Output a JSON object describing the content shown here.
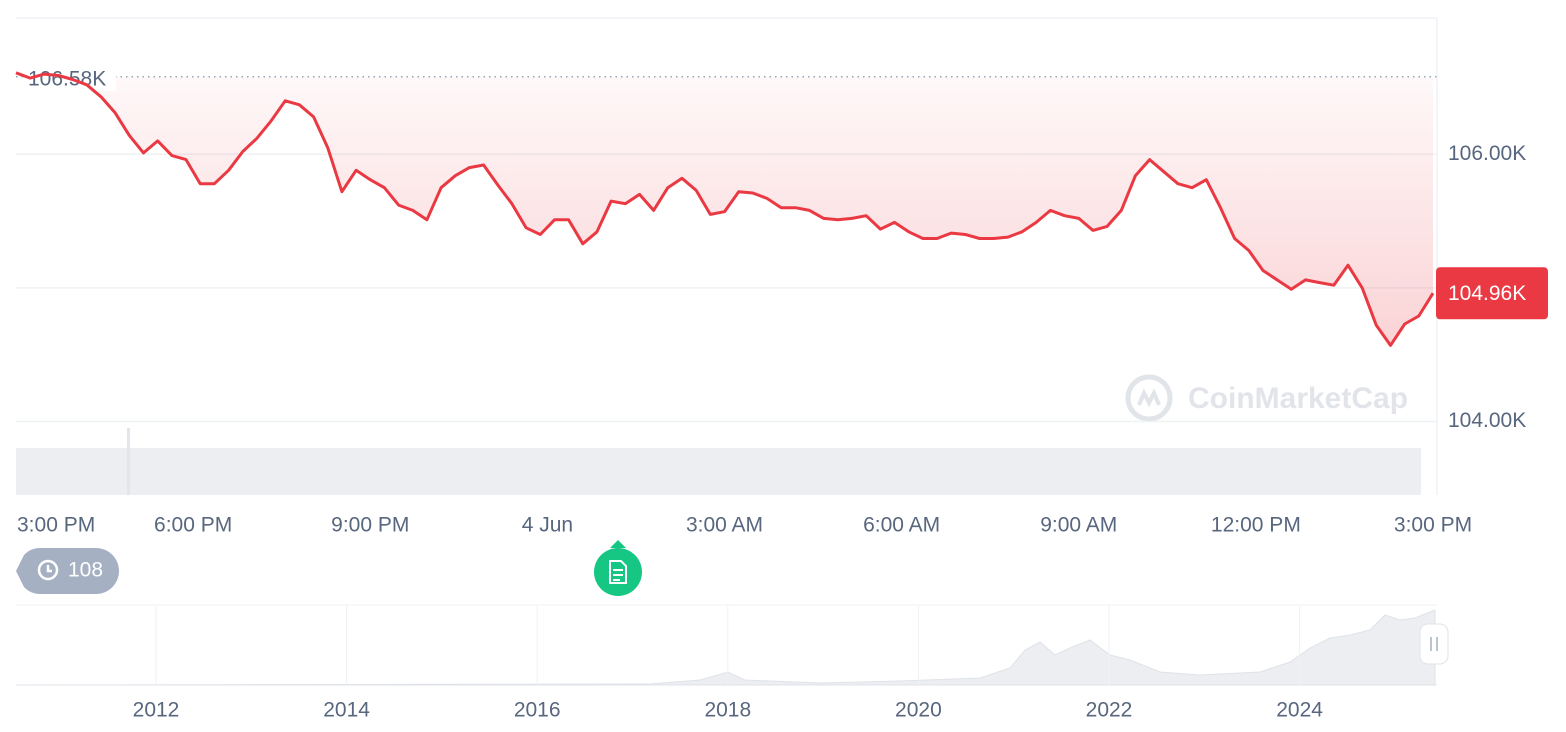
{
  "chart_data": {
    "type": "line",
    "color": "#ea3943",
    "values": [
      106610,
      106570,
      106600,
      106590,
      106560,
      106520,
      106430,
      106310,
      106140,
      106010,
      106100,
      105990,
      105960,
      105780,
      105780,
      105880,
      106020,
      106120,
      106250,
      106400,
      106370,
      106280,
      106050,
      105720,
      105880,
      105810,
      105750,
      105620,
      105580,
      105510,
      105750,
      105840,
      105900,
      105920,
      105770,
      105630,
      105450,
      105400,
      105510,
      105510,
      105330,
      105420,
      105650,
      105630,
      105700,
      105580,
      105750,
      105820,
      105730,
      105550,
      105570,
      105720,
      105710,
      105670,
      105600,
      105600,
      105580,
      105520,
      105510,
      105520,
      105540,
      105440,
      105490,
      105420,
      105370,
      105370,
      105410,
      105400,
      105370,
      105370,
      105380,
      105420,
      105490,
      105580,
      105540,
      105520,
      105430,
      105460,
      105580,
      105840,
      105960,
      105870,
      105780,
      105750,
      105810,
      105600,
      105370,
      105280,
      105130,
      105060,
      104990,
      105060,
      105040,
      105020,
      105170,
      105000,
      104720,
      104570,
      104730,
      104790,
      104960
    ],
    "x_labels": [
      "3:00 PM",
      "6:00 PM",
      "9:00 PM",
      "4 Jun",
      "3:00 AM",
      "6:00 AM",
      "9:00 AM",
      "12:00 PM",
      "3:00 PM"
    ],
    "ylim": [
      103450,
      107020
    ],
    "yticks": [
      {
        "value": 106000,
        "label": "106.00K"
      },
      {
        "value": 104000,
        "label": "104.00K"
      }
    ],
    "ygrid": [
      106000,
      105000,
      104000
    ],
    "reference": {
      "value": 106580,
      "label": "106.58K"
    },
    "last_price": {
      "value": 104960,
      "label": "104.96K"
    },
    "events_count": 108,
    "watermark": "CoinMarketCap",
    "navigator_years": [
      2012,
      2014,
      2016,
      2018,
      2020,
      2022,
      2024
    ]
  }
}
